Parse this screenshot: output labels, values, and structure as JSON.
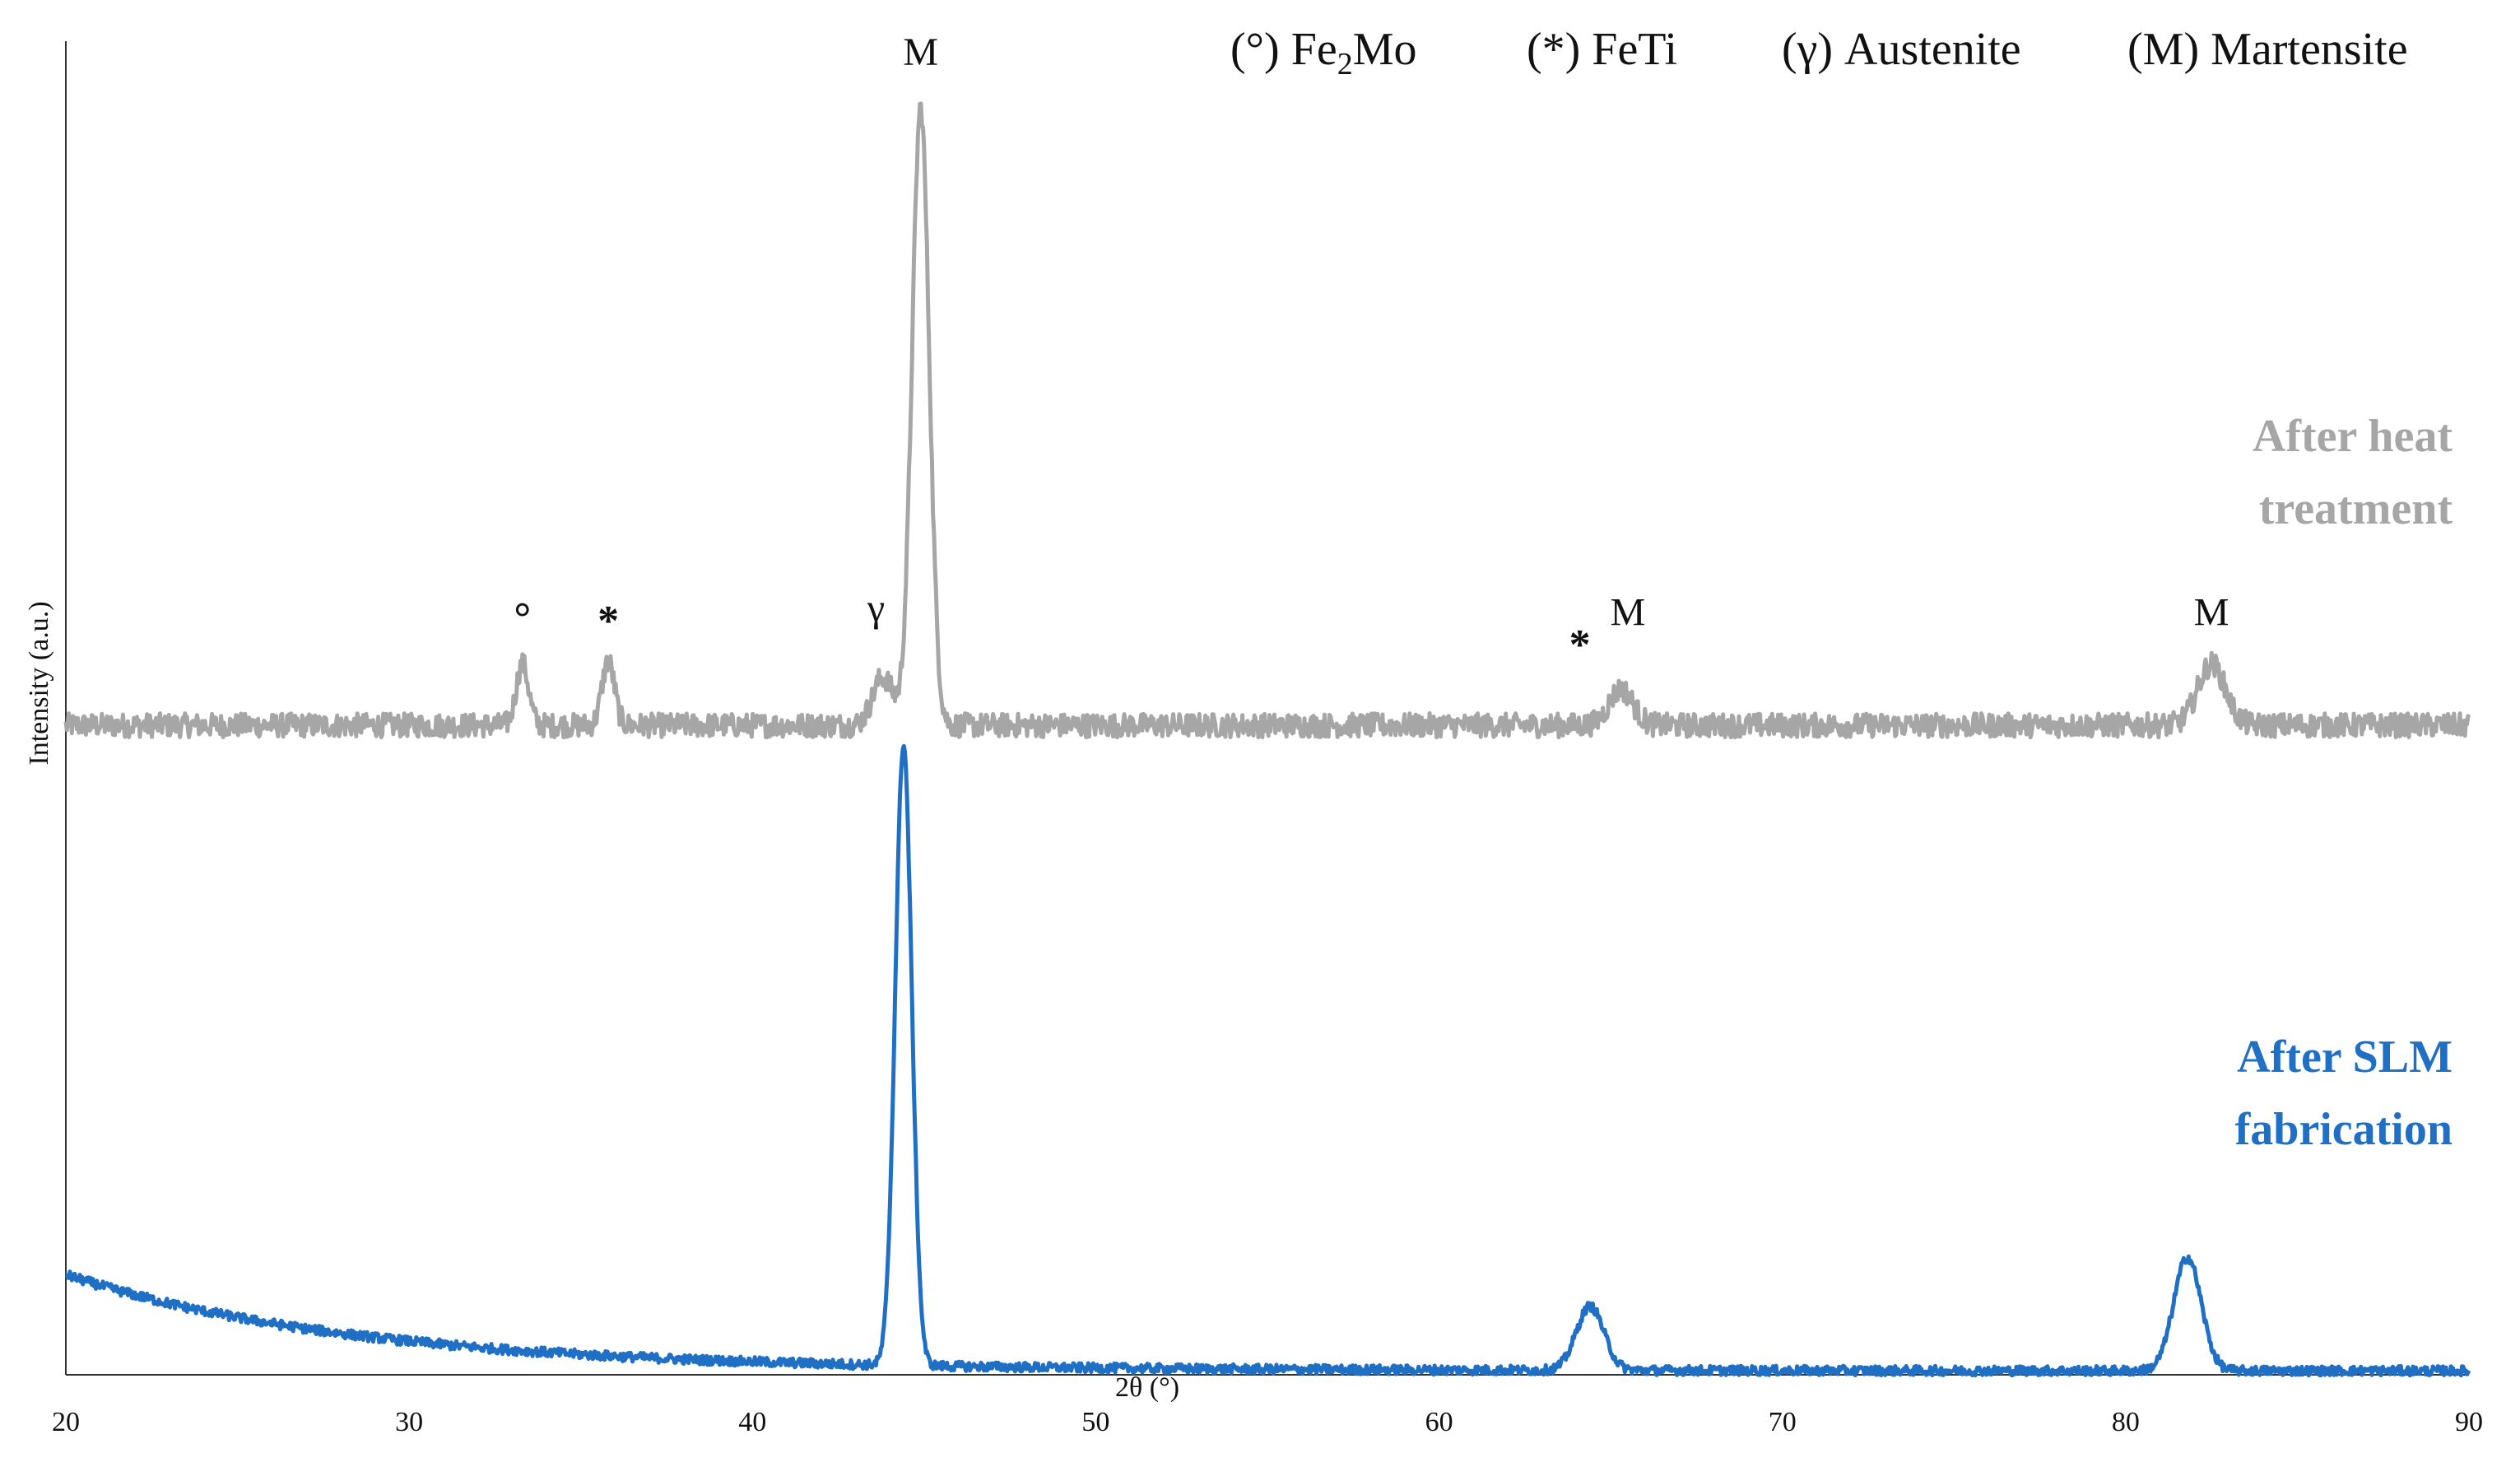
{
  "chart_data": {
    "type": "line",
    "xlabel": "2θ (°)",
    "ylabel": "Intensity (a.u.)",
    "xlim": [
      20,
      90
    ],
    "ylim": [
      0,
      100
    ],
    "xticks": [
      20,
      30,
      40,
      50,
      60,
      70,
      80,
      90
    ],
    "legend_position": "top-right",
    "legend": [
      {
        "symbol_text": "(°) Fe",
        "subscript": "2",
        "suffix": "Mo"
      },
      {
        "text": "(*) FeTi"
      },
      {
        "text": "(γ) Austenite"
      },
      {
        "text": "(M) Martensite"
      }
    ],
    "series": [
      {
        "name": "After heat treatment",
        "label_lines": [
          "After heat",
          "treatment"
        ],
        "color": "#a6a6a6",
        "baseline": 48.7,
        "noise": 0.9,
        "peaks": [
          {
            "x": 33.3,
            "height": 4.6,
            "width": 0.18
          },
          {
            "x": 35.8,
            "height": 4.8,
            "width": 0.18
          },
          {
            "x": 43.8,
            "height": 3.6,
            "width": 0.3
          },
          {
            "x": 44.9,
            "height": 46.3,
            "width": 0.25
          },
          {
            "x": 65.3,
            "height": 2.7,
            "width": 0.35
          },
          {
            "x": 82.5,
            "height": 4.6,
            "width": 0.4
          }
        ],
        "annotations": [
          {
            "x": 33.3,
            "y": 55.7,
            "text": "°",
            "kind": "symbol"
          },
          {
            "x": 35.8,
            "y": 55.5,
            "text": "*",
            "kind": "symbol"
          },
          {
            "x": 43.6,
            "y": 56.5,
            "text": "γ",
            "kind": "label"
          },
          {
            "x": 44.9,
            "y": 98.2,
            "text": "M",
            "kind": "label"
          },
          {
            "x": 64.1,
            "y": 53.7,
            "text": "*",
            "kind": "symbol"
          },
          {
            "x": 65.5,
            "y": 56.2,
            "text": "M",
            "kind": "label"
          },
          {
            "x": 82.5,
            "y": 56.2,
            "text": "M",
            "kind": "label"
          }
        ]
      },
      {
        "name": "After SLM fabrication",
        "label_lines": [
          "After SLM",
          "fabrication"
        ],
        "color": "#1f6fc5",
        "baseline": 0.3,
        "noise": 0.35,
        "decay": {
          "amplitude": 7.2,
          "tau": 8.5
        },
        "peaks": [
          {
            "x": 44.4,
            "height": 46.6,
            "width": 0.24
          },
          {
            "x": 64.4,
            "height": 4.8,
            "width": 0.4
          },
          {
            "x": 81.8,
            "height": 8.5,
            "width": 0.4
          }
        ]
      }
    ]
  }
}
